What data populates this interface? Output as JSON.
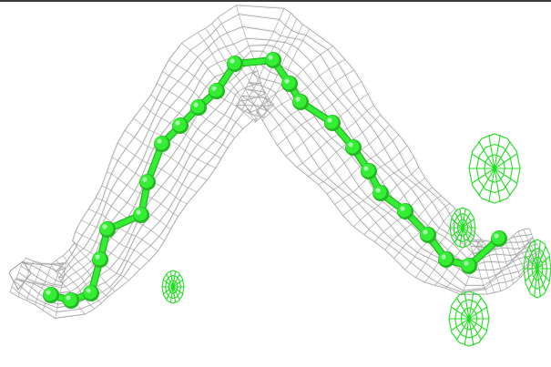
{
  "scene": {
    "background_color": "#ffffff",
    "frame_line_color": "#3a3a3a",
    "mesh_color": "#9a9a9a",
    "mesh_highlight_color": "#c8c8c8",
    "chain_color": "#33ee33",
    "chain_highlight_color": "#a8ffa8",
    "chain_shadow_color": "#22b822",
    "extra_density_color": "#22dd22",
    "atom_count": 23,
    "icons": [
      "electron-density-mesh",
      "atom-chain",
      "extra-density-mesh"
    ]
  }
}
